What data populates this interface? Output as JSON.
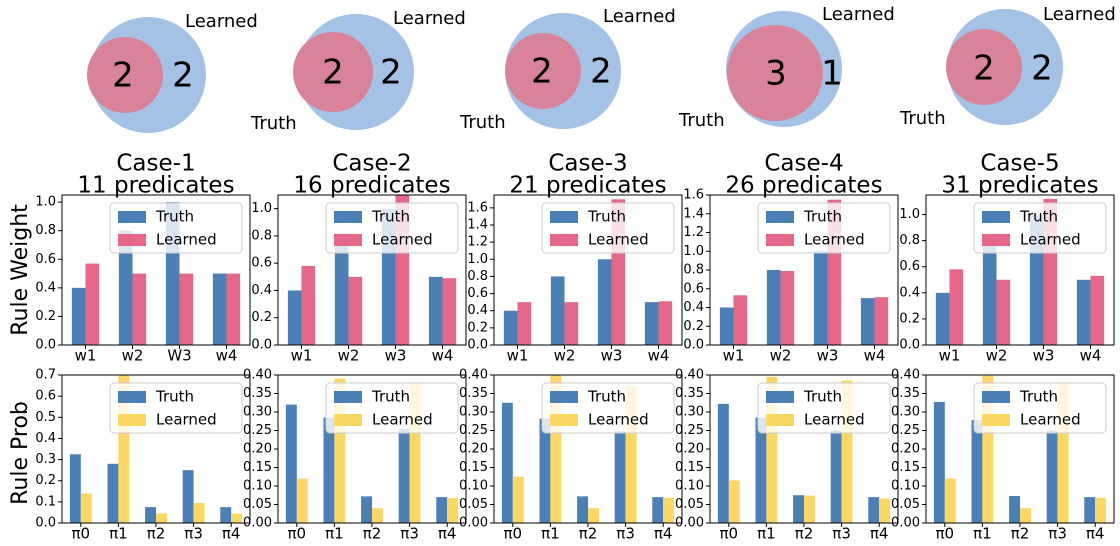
{
  "colors": {
    "truth": "#4a80b6",
    "learned_weight": "#e5688b",
    "learned_prob": "#fdd764",
    "venn_learned": "#a4c2e5",
    "venn_truth": "#d9839b"
  },
  "row_labels": {
    "weight": "Rule Weight",
    "prob": "Rule Prob"
  },
  "venn_labels": {
    "learned": "Learned",
    "truth": "Truth"
  },
  "cases": [
    {
      "title": "Case-1",
      "subtitle": "11 predicates",
      "venn": {
        "truth_count": "2",
        "learned_only_count": "2"
      }
    },
    {
      "title": "Case-2",
      "subtitle": "16 predicates",
      "venn": {
        "truth_count": "2",
        "learned_only_count": "2"
      }
    },
    {
      "title": "Case-3",
      "subtitle": "21 predicates",
      "venn": {
        "truth_count": "2",
        "learned_only_count": "2"
      }
    },
    {
      "title": "Case-4",
      "subtitle": "26 predicates",
      "venn": {
        "truth_count": "3",
        "learned_only_count": "1"
      }
    },
    {
      "title": "Case-5",
      "subtitle": "31 predicates",
      "venn": {
        "truth_count": "2",
        "learned_only_count": "2"
      }
    }
  ],
  "chart_data": [
    {
      "type": "bar",
      "panel": "weight",
      "case": "Case-1",
      "categories": [
        "w1",
        "w2",
        "W3",
        "w4"
      ],
      "ylim": [
        0,
        1.05
      ],
      "yticks": [
        "0.0",
        "0.2",
        "0.4",
        "0.6",
        "0.8",
        "1.0"
      ],
      "series": [
        {
          "name": "Truth",
          "values": [
            0.4,
            0.8,
            1.0,
            0.5
          ]
        },
        {
          "name": "Learned",
          "values": [
            0.57,
            0.5,
            0.5,
            0.5
          ]
        }
      ],
      "legend": "top-right"
    },
    {
      "type": "bar",
      "panel": "weight",
      "case": "Case-2",
      "categories": [
        "w1",
        "w2",
        "w3",
        "w4"
      ],
      "ylim": [
        0,
        1.1
      ],
      "yticks": [
        "0.0",
        "0.2",
        "0.4",
        "0.6",
        "0.8",
        "1.0"
      ],
      "series": [
        {
          "name": "Truth",
          "values": [
            0.4,
            0.8,
            1.0,
            0.5
          ]
        },
        {
          "name": "Learned",
          "values": [
            0.58,
            0.5,
            1.1,
            0.49
          ]
        }
      ],
      "legend": "top-right"
    },
    {
      "type": "bar",
      "panel": "weight",
      "case": "Case-3",
      "categories": [
        "w1",
        "w2",
        "w3",
        "w4"
      ],
      "ylim": [
        0,
        1.75
      ],
      "yticks": [
        "0.0",
        "0.2",
        "0.4",
        "0.6",
        "0.8",
        "1.0",
        "1.2",
        "1.4",
        "1.6"
      ],
      "series": [
        {
          "name": "Truth",
          "values": [
            0.4,
            0.8,
            1.0,
            0.5
          ]
        },
        {
          "name": "Learned",
          "values": [
            0.5,
            0.5,
            1.7,
            0.51
          ]
        }
      ],
      "legend": "top-right"
    },
    {
      "type": "bar",
      "panel": "weight",
      "case": "Case-4",
      "categories": [
        "w1",
        "w2",
        "w3",
        "w4"
      ],
      "ylim": [
        0,
        1.6
      ],
      "yticks": [
        "0.0",
        "0.2",
        "0.4",
        "0.6",
        "0.8",
        "1.0",
        "1.2",
        "1.4",
        "1.6"
      ],
      "series": [
        {
          "name": "Truth",
          "values": [
            0.4,
            0.8,
            1.0,
            0.5
          ]
        },
        {
          "name": "Learned",
          "values": [
            0.53,
            0.79,
            1.55,
            0.51
          ]
        }
      ],
      "legend": "top-right"
    },
    {
      "type": "bar",
      "panel": "weight",
      "case": "Case-5",
      "categories": [
        "w1",
        "w2",
        "w3",
        "w4"
      ],
      "ylim": [
        0,
        1.15
      ],
      "yticks": [
        "0.0",
        "0.2",
        "0.4",
        "0.6",
        "0.8",
        "1.0"
      ],
      "series": [
        {
          "name": "Truth",
          "values": [
            0.4,
            0.8,
            1.0,
            0.5
          ]
        },
        {
          "name": "Learned",
          "values": [
            0.58,
            0.5,
            1.12,
            0.53
          ]
        }
      ],
      "legend": "top-right"
    },
    {
      "type": "bar",
      "panel": "prob",
      "case": "Case-1",
      "categories": [
        "π0",
        "π1",
        "π2",
        "π3",
        "π4"
      ],
      "ylim": [
        0,
        0.7
      ],
      "yticks": [
        "0.0",
        "0.1",
        "0.2",
        "0.3",
        "0.4",
        "0.5",
        "0.6",
        "0.7"
      ],
      "series": [
        {
          "name": "Truth",
          "values": [
            0.325,
            0.28,
            0.075,
            0.25,
            0.075
          ]
        },
        {
          "name": "Learned",
          "values": [
            0.14,
            0.7,
            0.045,
            0.095,
            0.045
          ]
        }
      ],
      "legend": "top-right"
    },
    {
      "type": "bar",
      "panel": "prob",
      "case": "Case-2",
      "categories": [
        "π0",
        "π1",
        "π2",
        "π3",
        "π4"
      ],
      "ylim": [
        0,
        0.4
      ],
      "yticks": [
        "0.00",
        "0.05",
        "0.10",
        "0.15",
        "0.20",
        "0.25",
        "0.30",
        "0.35",
        "0.40"
      ],
      "series": [
        {
          "name": "Truth",
          "values": [
            0.32,
            0.285,
            0.072,
            0.255,
            0.07
          ]
        },
        {
          "name": "Learned",
          "values": [
            0.12,
            0.39,
            0.04,
            0.38,
            0.067
          ]
        }
      ],
      "legend": "top-right"
    },
    {
      "type": "bar",
      "panel": "prob",
      "case": "Case-3",
      "categories": [
        "π0",
        "π1",
        "π2",
        "π3",
        "π4"
      ],
      "ylim": [
        0,
        0.4
      ],
      "yticks": [
        "0.00",
        "0.05",
        "0.10",
        "0.15",
        "0.20",
        "0.25",
        "0.30",
        "0.35",
        "0.40"
      ],
      "series": [
        {
          "name": "Truth",
          "values": [
            0.325,
            0.282,
            0.072,
            0.248,
            0.07
          ]
        },
        {
          "name": "Learned",
          "values": [
            0.125,
            0.4,
            0.04,
            0.37,
            0.068
          ]
        }
      ],
      "legend": "top-right"
    },
    {
      "type": "bar",
      "panel": "prob",
      "case": "Case-4",
      "categories": [
        "π0",
        "π1",
        "π2",
        "π3",
        "π4"
      ],
      "ylim": [
        0,
        0.4
      ],
      "yticks": [
        "0.00",
        "0.05",
        "0.10",
        "0.15",
        "0.20",
        "0.25",
        "0.30",
        "0.35",
        "0.40"
      ],
      "series": [
        {
          "name": "Truth",
          "values": [
            0.322,
            0.285,
            0.075,
            0.25,
            0.07
          ]
        },
        {
          "name": "Learned",
          "values": [
            0.115,
            0.395,
            0.074,
            0.385,
            0.066
          ]
        }
      ],
      "legend": "top-right"
    },
    {
      "type": "bar",
      "panel": "prob",
      "case": "Case-5",
      "categories": [
        "π0",
        "π1",
        "π2",
        "π3",
        "π4"
      ],
      "ylim": [
        0,
        0.4
      ],
      "yticks": [
        "0.00",
        "0.05",
        "0.10",
        "0.15",
        "0.20",
        "0.25",
        "0.30",
        "0.35",
        "0.40"
      ],
      "series": [
        {
          "name": "Truth",
          "values": [
            0.327,
            0.278,
            0.073,
            0.25,
            0.07
          ]
        },
        {
          "name": "Learned",
          "values": [
            0.12,
            0.398,
            0.04,
            0.38,
            0.068
          ]
        }
      ],
      "legend": "top-right"
    }
  ]
}
